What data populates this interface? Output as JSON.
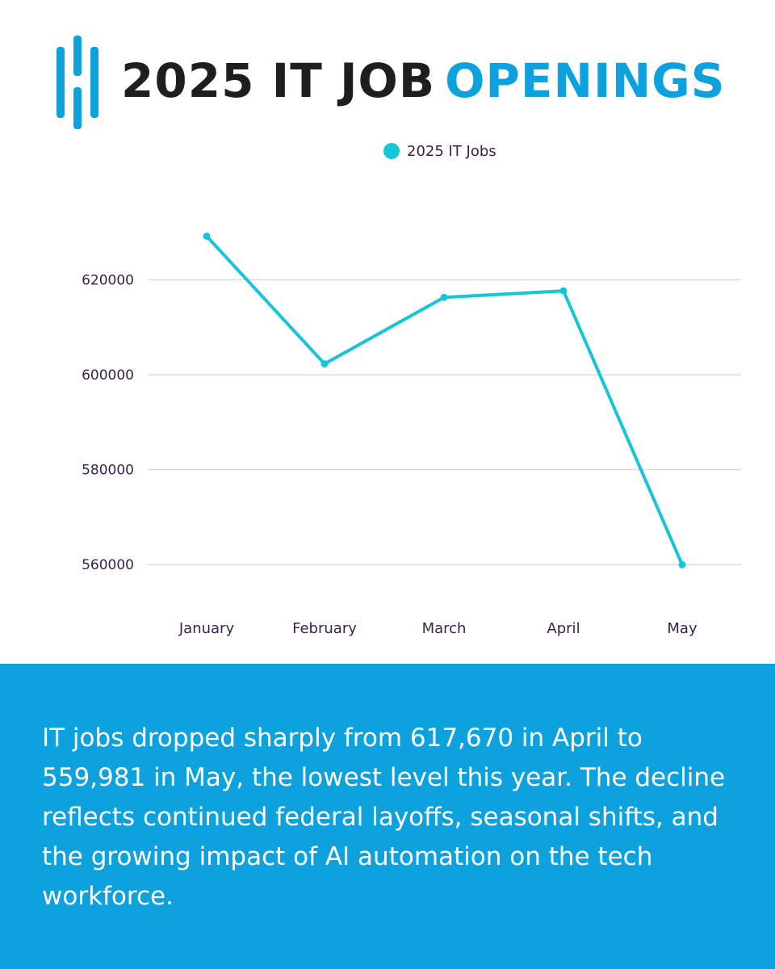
{
  "header": {
    "title_part1": "2025 IT JOB",
    "title_part2": "OPENINGS",
    "logo_icon": "brand-logo-icon"
  },
  "colors": {
    "accent": "#0da2dd",
    "series": "#17c5d8",
    "dark_text": "#1e1e1e",
    "axis_text": "#3a1f4d",
    "grid": "#dcdcdc"
  },
  "chart_data": {
    "type": "line",
    "title": "",
    "xlabel": "",
    "ylabel": "",
    "categories": [
      "January",
      "February",
      "March",
      "April",
      "May"
    ],
    "series": [
      {
        "name": "2025 IT Jobs",
        "values": [
          629200,
          602300,
          616300,
          617670,
          559981
        ]
      }
    ],
    "yticks": [
      560000,
      580000,
      600000,
      620000
    ],
    "ylim": [
      550000,
      640000
    ],
    "grid": true,
    "legend": "top-center"
  },
  "footer": {
    "text": "IT jobs dropped sharply from 617,670 in April to 559,981 in May, the lowest level this year. The decline reflects continued federal layoffs, seasonal shifts, and the growing impact of AI automation on the tech workforce."
  }
}
